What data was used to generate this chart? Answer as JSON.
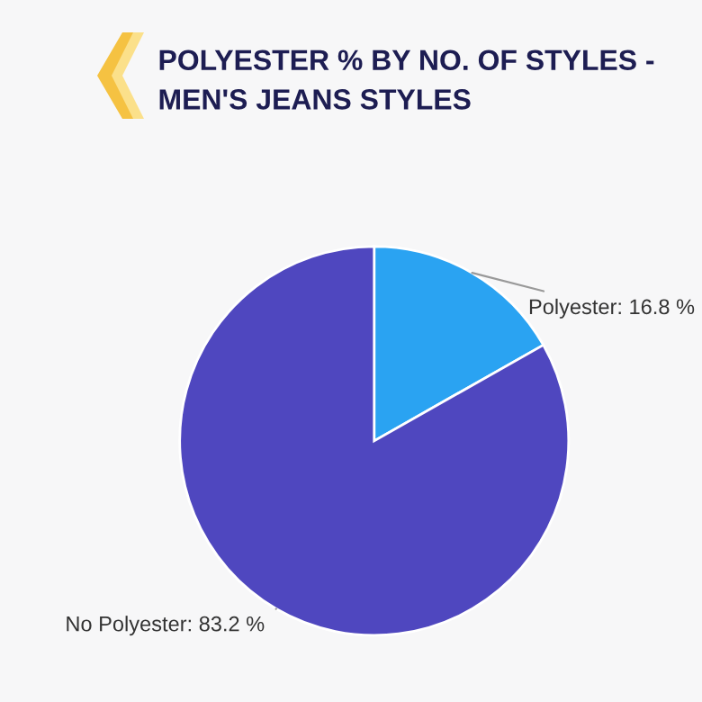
{
  "chart_data": {
    "type": "pie",
    "title": "POLYESTER % BY NO. OF STYLES -\nMEN'S JEANS STYLES",
    "categories": [
      "Polyester",
      "No Polyester"
    ],
    "values": [
      16.8,
      83.2
    ],
    "value_labels": [
      "16.8 %",
      "83.2 %"
    ],
    "colors": [
      "#2aa3f2",
      "#4f47bf"
    ]
  }
}
